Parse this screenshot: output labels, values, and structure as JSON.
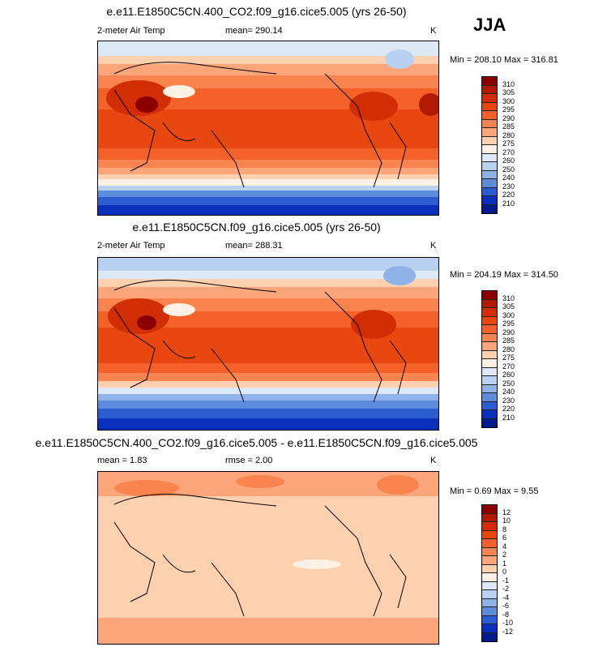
{
  "season": "JJA",
  "panels": [
    {
      "title": "e.e11.E1850C5CN.400_CO2.f09_g16.cice5.005 (yrs 26-50)",
      "left_label": "2-meter Air Temp",
      "center_label": "mean= 290.14",
      "units": "K",
      "minmax": "Min = 208.10 Max = 316.81",
      "levels": [
        "310",
        "305",
        "300",
        "295",
        "290",
        "285",
        "280",
        "275",
        "270",
        "260",
        "250",
        "240",
        "230",
        "220",
        "210"
      ],
      "colors": [
        "#8b0000",
        "#b01a00",
        "#d22e05",
        "#e8470f",
        "#f4622a",
        "#f9844f",
        "#fba67a",
        "#fdd0b0",
        "#fdf1e5",
        "#dde9f7",
        "#b8d1f0",
        "#8fb2e8",
        "#5e8cdd",
        "#2d5ed1",
        "#0a2fba",
        "#061a8c"
      ]
    },
    {
      "title": "e.e11.E1850C5CN.f09_g16.cice5.005 (yrs 26-50)",
      "left_label": "2-meter Air Temp",
      "center_label": "mean= 288.31",
      "units": "K",
      "minmax": "Min = 204.19 Max = 314.50",
      "levels": [
        "310",
        "305",
        "300",
        "295",
        "290",
        "285",
        "280",
        "275",
        "270",
        "260",
        "250",
        "240",
        "230",
        "220",
        "210"
      ],
      "colors": [
        "#8b0000",
        "#b01a00",
        "#d22e05",
        "#e8470f",
        "#f4622a",
        "#f9844f",
        "#fba67a",
        "#fdd0b0",
        "#fdf1e5",
        "#dde9f7",
        "#b8d1f0",
        "#8fb2e8",
        "#5e8cdd",
        "#2d5ed1",
        "#0a2fba",
        "#061a8c"
      ]
    },
    {
      "title": "e.e11.E1850C5CN.400_CO2.f09_g16.cice5.005 - e.e11.E1850C5CN.f09_g16.cice5.005",
      "left_label": "mean =   1.83",
      "center_label": "rmse =   2.00",
      "units": "K",
      "minmax": "Min =  0.69 Max =  9.55",
      "levels": [
        "12",
        "10",
        "8",
        "6",
        "4",
        "2",
        "1",
        "0",
        "-1",
        "-2",
        "-4",
        "-6",
        "-8",
        "-10",
        "-12"
      ],
      "colors": [
        "#8b0000",
        "#b01a00",
        "#d22e05",
        "#e8470f",
        "#f4622a",
        "#f9844f",
        "#fba67a",
        "#fdd0b0",
        "#fdf1e5",
        "#dde9f7",
        "#b8d1f0",
        "#8fb2e8",
        "#5e8cdd",
        "#2d5ed1",
        "#0a2fba",
        "#061a8c"
      ]
    }
  ]
}
